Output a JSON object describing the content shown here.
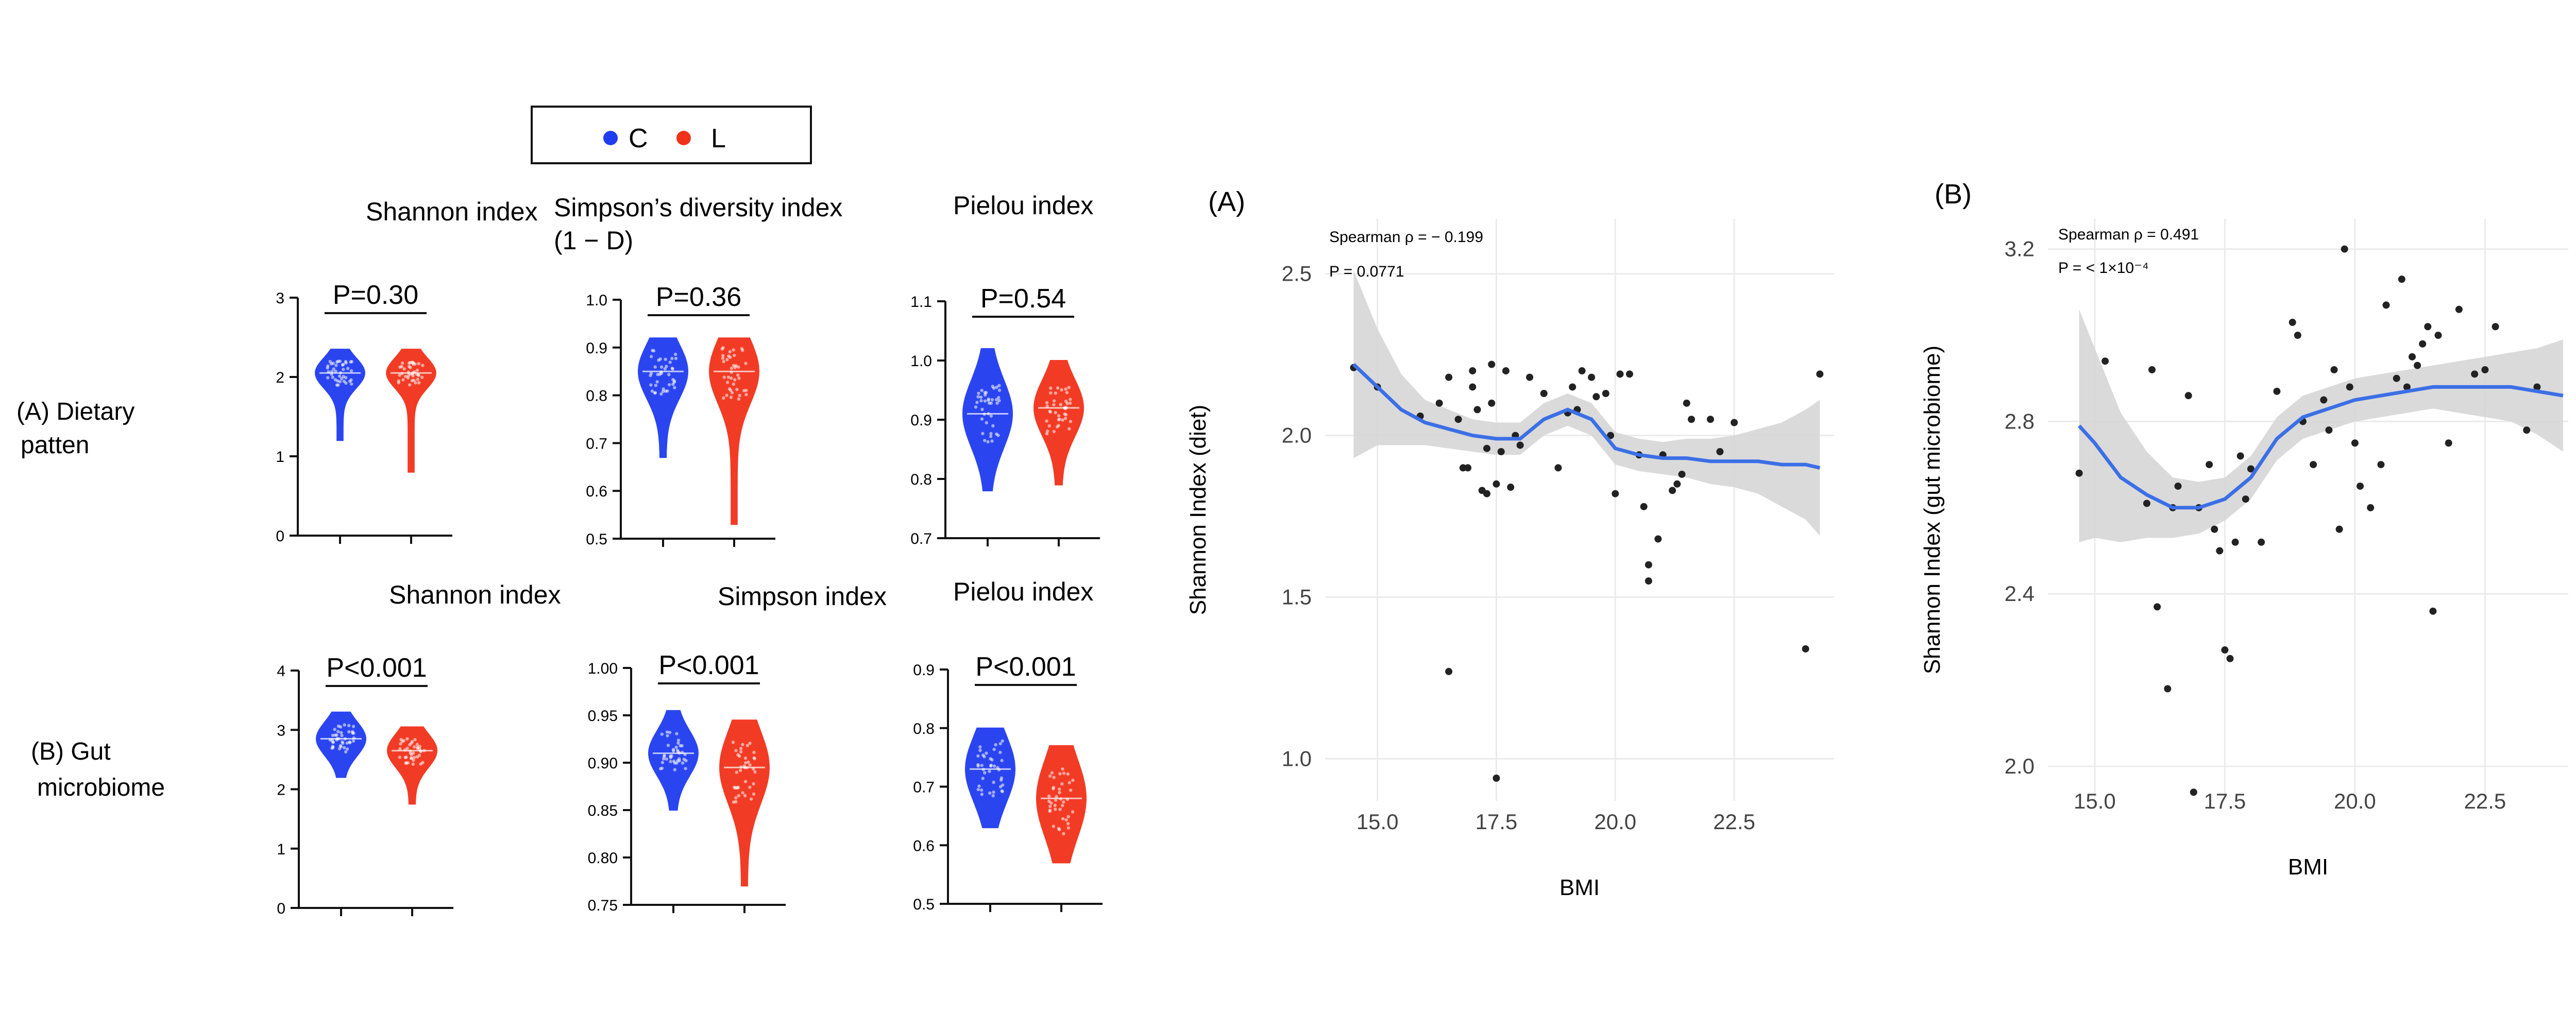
{
  "colors": {
    "c": "#1f3cf0",
    "l": "#f2311a",
    "fit": "#3b6fe6",
    "band": "#d6d6d6",
    "point": "#222222",
    "grid": "#ebebeb"
  },
  "legend": {
    "items": [
      {
        "label": "C",
        "color": "#1f3cf0"
      },
      {
        "label": "L",
        "color": "#f2311a"
      }
    ]
  },
  "row_labels": {
    "a_line1": "(A) Dietary",
    "a_line2": "patten",
    "b_line1": "(B) Gut",
    "b_line2": "microbiome"
  },
  "chart_data": [
    {
      "id": "vA1",
      "type": "violin",
      "title": [
        "Shannon index"
      ],
      "pvalue": "P=0.30",
      "ylim": [
        0,
        3
      ],
      "ticks": [
        "0",
        "1",
        "2",
        "3"
      ],
      "groups": [
        {
          "name": "C",
          "median": 2.05,
          "q1": 1.95,
          "q3": 2.15,
          "min": 1.2,
          "max": 2.35
        },
        {
          "name": "L",
          "median": 2.05,
          "q1": 1.95,
          "q3": 2.15,
          "min": 0.8,
          "max": 2.35
        }
      ]
    },
    {
      "id": "vA2",
      "type": "violin",
      "title": [
        "Simpson’s diversity index",
        "(1 − D)"
      ],
      "pvalue": "P=0.36",
      "ylim": [
        0.5,
        1.0
      ],
      "ticks": [
        "0.5",
        "0.6",
        "0.7",
        "0.8",
        "0.9",
        "1.0"
      ],
      "groups": [
        {
          "name": "C",
          "median": 0.85,
          "q1": 0.82,
          "q3": 0.88,
          "min": 0.67,
          "max": 0.92
        },
        {
          "name": "L",
          "median": 0.85,
          "q1": 0.81,
          "q3": 0.88,
          "min": 0.53,
          "max": 0.92
        }
      ]
    },
    {
      "id": "vA3",
      "type": "violin",
      "title": [
        "Pielou index"
      ],
      "pvalue": "P=0.54",
      "ylim": [
        0.7,
        1.1
      ],
      "ticks": [
        "0.7",
        "0.8",
        "0.9",
        "1.0",
        "1.1"
      ],
      "groups": [
        {
          "name": "C",
          "median": 0.91,
          "q1": 0.88,
          "q3": 0.94,
          "min": 0.78,
          "max": 1.02
        },
        {
          "name": "L",
          "median": 0.92,
          "q1": 0.89,
          "q3": 0.94,
          "min": 0.79,
          "max": 1.0
        }
      ]
    },
    {
      "id": "vB1",
      "type": "violin",
      "title": [
        "Shannon index"
      ],
      "pvalue": "P<0.001",
      "ylim": [
        0,
        4
      ],
      "ticks": [
        "0",
        "1",
        "2",
        "3",
        "4"
      ],
      "groups": [
        {
          "name": "C",
          "median": 2.85,
          "q1": 2.7,
          "q3": 3.0,
          "min": 2.2,
          "max": 3.3
        },
        {
          "name": "L",
          "median": 2.65,
          "q1": 2.5,
          "q3": 2.8,
          "min": 1.75,
          "max": 3.05
        }
      ]
    },
    {
      "id": "vB2",
      "type": "violin",
      "title": [
        "Simpson index"
      ],
      "pvalue": "P<0.001",
      "ylim": [
        0.75,
        1.0
      ],
      "ticks": [
        "0.75",
        "0.80",
        "0.85",
        "0.90",
        "0.95",
        "1.00"
      ],
      "groups": [
        {
          "name": "C",
          "median": 0.91,
          "q1": 0.9,
          "q3": 0.925,
          "min": 0.85,
          "max": 0.955
        },
        {
          "name": "L",
          "median": 0.895,
          "q1": 0.87,
          "q3": 0.91,
          "min": 0.77,
          "max": 0.945
        }
      ]
    },
    {
      "id": "vB3",
      "type": "violin",
      "title": [
        "Pielou index"
      ],
      "pvalue": "P<0.001",
      "ylim": [
        0.5,
        0.9
      ],
      "ticks": [
        "0.5",
        "0.6",
        "0.7",
        "0.8",
        "0.9"
      ],
      "groups": [
        {
          "name": "C",
          "median": 0.73,
          "q1": 0.7,
          "q3": 0.76,
          "min": 0.63,
          "max": 0.8
        },
        {
          "name": "L",
          "median": 0.68,
          "q1": 0.64,
          "q3": 0.71,
          "min": 0.57,
          "max": 0.77
        }
      ]
    },
    {
      "id": "sA",
      "type": "scatter",
      "panel_label": "(A)",
      "annot1": "Spearman ρ = − 0.199",
      "annot2": "P = 0.0771",
      "xlabel": "BMI",
      "ylabel": "Shannon Index (diet)",
      "xlim": [
        13.9,
        24.6
      ],
      "ylim": [
        0.87,
        2.67
      ],
      "xticks": [
        15.0,
        17.5,
        20.0,
        22.5
      ],
      "yticks": [
        1.0,
        1.5,
        2.0,
        2.5
      ],
      "points": [
        [
          14.5,
          2.21
        ],
        [
          15.0,
          2.15
        ],
        [
          15.9,
          2.06
        ],
        [
          16.3,
          2.1
        ],
        [
          16.5,
          2.18
        ],
        [
          16.7,
          2.05
        ],
        [
          16.8,
          1.9
        ],
        [
          16.9,
          1.9
        ],
        [
          17.0,
          2.15
        ],
        [
          17.0,
          2.2
        ],
        [
          17.1,
          2.08
        ],
        [
          17.2,
          1.83
        ],
        [
          17.3,
          1.82
        ],
        [
          17.3,
          1.96
        ],
        [
          17.4,
          2.1
        ],
        [
          17.4,
          2.22
        ],
        [
          17.5,
          1.85
        ],
        [
          17.6,
          1.95
        ],
        [
          17.7,
          2.2
        ],
        [
          17.8,
          1.84
        ],
        [
          17.9,
          2.0
        ],
        [
          18.0,
          1.97
        ],
        [
          18.5,
          2.13
        ],
        [
          18.8,
          1.9
        ],
        [
          19.0,
          2.07
        ],
        [
          19.2,
          2.08
        ],
        [
          19.3,
          2.2
        ],
        [
          19.5,
          2.18
        ],
        [
          19.6,
          2.12
        ],
        [
          19.8,
          2.13
        ],
        [
          19.9,
          2.0
        ],
        [
          20.0,
          1.82
        ],
        [
          20.1,
          2.19
        ],
        [
          20.3,
          2.19
        ],
        [
          20.5,
          1.94
        ],
        [
          20.6,
          1.78
        ],
        [
          20.7,
          1.6
        ],
        [
          20.7,
          1.55
        ],
        [
          20.9,
          1.68
        ],
        [
          21.0,
          1.94
        ],
        [
          21.2,
          1.83
        ],
        [
          21.3,
          1.85
        ],
        [
          21.4,
          1.88
        ],
        [
          21.5,
          2.1
        ],
        [
          21.6,
          2.05
        ],
        [
          22.0,
          2.05
        ],
        [
          22.2,
          1.95
        ],
        [
          22.5,
          2.04
        ],
        [
          16.5,
          1.27
        ],
        [
          17.5,
          0.94
        ],
        [
          24.0,
          1.34
        ],
        [
          24.3,
          2.19
        ],
        [
          18.2,
          2.18
        ],
        [
          19.1,
          2.15
        ]
      ],
      "fit": [
        [
          14.5,
          2.22
        ],
        [
          15.0,
          2.15
        ],
        [
          15.5,
          2.08
        ],
        [
          16.0,
          2.04
        ],
        [
          16.5,
          2.02
        ],
        [
          17.0,
          2.0
        ],
        [
          17.5,
          1.99
        ],
        [
          18.0,
          1.99
        ],
        [
          18.5,
          2.05
        ],
        [
          19.0,
          2.08
        ],
        [
          19.5,
          2.05
        ],
        [
          20.0,
          1.96
        ],
        [
          20.5,
          1.94
        ],
        [
          21.0,
          1.93
        ],
        [
          21.5,
          1.93
        ],
        [
          22.0,
          1.92
        ],
        [
          22.5,
          1.92
        ],
        [
          23.0,
          1.92
        ],
        [
          23.5,
          1.91
        ],
        [
          24.0,
          1.91
        ],
        [
          24.3,
          1.9
        ]
      ],
      "band_half": [
        0.29,
        0.18,
        0.11,
        0.07,
        0.06,
        0.05,
        0.05,
        0.05,
        0.05,
        0.05,
        0.05,
        0.05,
        0.05,
        0.05,
        0.06,
        0.07,
        0.08,
        0.1,
        0.13,
        0.17,
        0.21
      ]
    },
    {
      "id": "sB",
      "type": "scatter",
      "panel_label": "(B)",
      "annot1": "Spearman ρ = 0.491",
      "annot2": "P = < 1×10⁻⁴",
      "xlabel": "BMI",
      "ylabel": "Shannon Index (gut microbiome)",
      "xlim": [
        14.1,
        24.1
      ],
      "ylim": [
        1.92,
        3.27
      ],
      "xticks": [
        15.0,
        17.5,
        20.0,
        22.5
      ],
      "yticks": [
        2.0,
        2.4,
        2.8,
        3.2
      ],
      "points": [
        [
          14.7,
          2.68
        ],
        [
          15.2,
          2.94
        ],
        [
          16.0,
          2.61
        ],
        [
          16.1,
          2.92
        ],
        [
          16.2,
          2.37
        ],
        [
          16.4,
          2.18
        ],
        [
          16.5,
          2.6
        ],
        [
          16.6,
          2.65
        ],
        [
          16.8,
          2.86
        ],
        [
          16.9,
          1.94
        ],
        [
          17.0,
          2.6
        ],
        [
          17.2,
          2.7
        ],
        [
          17.3,
          2.55
        ],
        [
          17.4,
          2.5
        ],
        [
          17.5,
          2.27
        ],
        [
          17.6,
          2.25
        ],
        [
          17.7,
          2.52
        ],
        [
          17.8,
          2.72
        ],
        [
          17.9,
          2.62
        ],
        [
          18.0,
          2.69
        ],
        [
          18.2,
          2.52
        ],
        [
          18.5,
          2.87
        ],
        [
          18.8,
          3.03
        ],
        [
          18.9,
          3.0
        ],
        [
          19.0,
          2.8
        ],
        [
          19.2,
          2.7
        ],
        [
          19.4,
          2.85
        ],
        [
          19.5,
          2.78
        ],
        [
          19.6,
          2.92
        ],
        [
          19.7,
          2.55
        ],
        [
          19.8,
          3.2
        ],
        [
          19.9,
          2.88
        ],
        [
          20.0,
          2.75
        ],
        [
          20.1,
          2.65
        ],
        [
          20.3,
          2.6
        ],
        [
          20.5,
          2.7
        ],
        [
          20.6,
          3.07
        ],
        [
          20.8,
          2.9
        ],
        [
          20.9,
          3.13
        ],
        [
          21.0,
          2.88
        ],
        [
          21.1,
          2.95
        ],
        [
          21.2,
          2.93
        ],
        [
          21.3,
          2.98
        ],
        [
          21.4,
          3.02
        ],
        [
          21.5,
          2.36
        ],
        [
          21.6,
          3.0
        ],
        [
          21.8,
          2.75
        ],
        [
          22.0,
          3.06
        ],
        [
          22.3,
          2.91
        ],
        [
          22.5,
          2.92
        ],
        [
          22.7,
          3.02
        ],
        [
          23.3,
          2.78
        ],
        [
          23.5,
          2.88
        ]
      ],
      "fit": [
        [
          14.7,
          2.79
        ],
        [
          15.0,
          2.75
        ],
        [
          15.5,
          2.67
        ],
        [
          16.0,
          2.63
        ],
        [
          16.5,
          2.6
        ],
        [
          17.0,
          2.6
        ],
        [
          17.5,
          2.62
        ],
        [
          18.0,
          2.67
        ],
        [
          18.5,
          2.76
        ],
        [
          19.0,
          2.81
        ],
        [
          19.5,
          2.83
        ],
        [
          20.0,
          2.85
        ],
        [
          20.5,
          2.86
        ],
        [
          21.0,
          2.87
        ],
        [
          21.5,
          2.88
        ],
        [
          22.0,
          2.88
        ],
        [
          22.5,
          2.88
        ],
        [
          23.0,
          2.88
        ],
        [
          23.5,
          2.87
        ],
        [
          24.0,
          2.86
        ]
      ],
      "band_half": [
        0.27,
        0.22,
        0.15,
        0.1,
        0.07,
        0.06,
        0.05,
        0.05,
        0.05,
        0.05,
        0.05,
        0.05,
        0.05,
        0.05,
        0.05,
        0.06,
        0.07,
        0.08,
        0.1,
        0.13
      ]
    }
  ]
}
